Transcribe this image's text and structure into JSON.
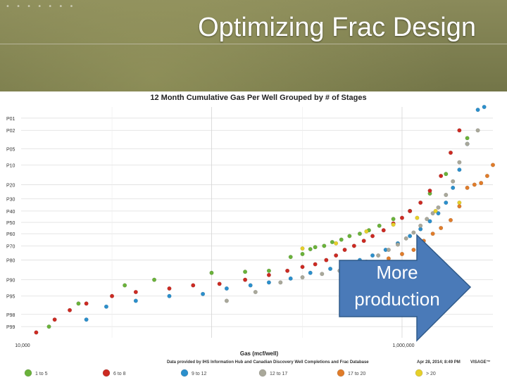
{
  "slide": {
    "title": "Optimizing Frac Design",
    "dots": "• • • • • • •"
  },
  "annotation": {
    "text_line1": "More",
    "text_line2": "production",
    "arrow_color": "#4a7ab8"
  },
  "chart_data": {
    "type": "scatter",
    "title": "12 Month Cumulative Gas Per Well Grouped by # of Stages",
    "subtitle": "",
    "xlabel": "Gas (mcf/well)",
    "ylabel": "",
    "x_scale": "log",
    "xlim": [
      10000,
      3000000
    ],
    "x_ticks": [
      {
        "value": 10000,
        "label": "10,000"
      },
      {
        "value": 1000000,
        "label": "1,000,000"
      }
    ],
    "y_scale": "percentile",
    "ylim": [
      99.5,
      0.5
    ],
    "y_ticks": [
      {
        "value": 1,
        "label": "P01"
      },
      {
        "value": 2,
        "label": "P02"
      },
      {
        "value": 5,
        "label": "P05"
      },
      {
        "value": 10,
        "label": "P10"
      },
      {
        "value": 20,
        "label": "P20"
      },
      {
        "value": 30,
        "label": "P30"
      },
      {
        "value": 40,
        "label": "P40"
      },
      {
        "value": 50,
        "label": "P50"
      },
      {
        "value": 60,
        "label": "P60"
      },
      {
        "value": 70,
        "label": "P70"
      },
      {
        "value": 80,
        "label": "P80"
      },
      {
        "value": 90,
        "label": "P90"
      },
      {
        "value": 95,
        "label": "P95"
      },
      {
        "value": 98,
        "label": "P98"
      },
      {
        "value": 99,
        "label": "P99"
      }
    ],
    "footer_source": "Data provided by IHS Information Hub and Canadian Discovery Well Completions and Frac Database",
    "footer_date": "Apr 28, 2014; 8:49 PM",
    "footer_brand": "VISAGE™",
    "legend_position": "bottom",
    "series": [
      {
        "name": "1 to 5",
        "color": "#6ab23a",
        "points": [
          [
            14000,
            99
          ],
          [
            20000,
            96.5
          ],
          [
            35000,
            92
          ],
          [
            50000,
            90
          ],
          [
            100000,
            87
          ],
          [
            150000,
            86.5
          ],
          [
            200000,
            86
          ],
          [
            260000,
            78
          ],
          [
            300000,
            76
          ],
          [
            330000,
            72.5
          ],
          [
            350000,
            71
          ],
          [
            390000,
            70
          ],
          [
            430000,
            67
          ],
          [
            480000,
            65
          ],
          [
            530000,
            62
          ],
          [
            600000,
            60
          ],
          [
            670000,
            57
          ],
          [
            760000,
            53
          ],
          [
            900000,
            47
          ],
          [
            1100000,
            40
          ],
          [
            1400000,
            26
          ],
          [
            1700000,
            14
          ],
          [
            2200000,
            3
          ]
        ]
      },
      {
        "name": "6 to 8",
        "color": "#cc2a22",
        "points": [
          [
            12000,
            99.3
          ],
          [
            15000,
            98.5
          ],
          [
            18000,
            97.5
          ],
          [
            22000,
            96.5
          ],
          [
            30000,
            95
          ],
          [
            40000,
            94
          ],
          [
            60000,
            93
          ],
          [
            80000,
            92
          ],
          [
            110000,
            91.5
          ],
          [
            150000,
            90
          ],
          [
            200000,
            88
          ],
          [
            250000,
            86
          ],
          [
            300000,
            84
          ],
          [
            350000,
            82.5
          ],
          [
            400000,
            80
          ],
          [
            450000,
            77
          ],
          [
            500000,
            73
          ],
          [
            560000,
            70
          ],
          [
            630000,
            66
          ],
          [
            700000,
            62
          ],
          [
            800000,
            57
          ],
          [
            900000,
            51
          ],
          [
            1000000,
            46
          ],
          [
            1100000,
            40
          ],
          [
            1250000,
            33
          ],
          [
            1400000,
            24
          ],
          [
            1600000,
            15
          ],
          [
            1800000,
            6
          ],
          [
            2000000,
            2
          ]
        ]
      },
      {
        "name": "9 to 12",
        "color": "#2b8fcc",
        "points": [
          [
            22000,
            98.5
          ],
          [
            28000,
            97
          ],
          [
            40000,
            96
          ],
          [
            60000,
            95
          ],
          [
            90000,
            94.5
          ],
          [
            120000,
            93
          ],
          [
            160000,
            92
          ],
          [
            200000,
            91
          ],
          [
            260000,
            89.5
          ],
          [
            330000,
            87
          ],
          [
            420000,
            85
          ],
          [
            500000,
            83
          ],
          [
            600000,
            80
          ],
          [
            700000,
            77
          ],
          [
            820000,
            73
          ],
          [
            950000,
            68
          ],
          [
            1100000,
            62
          ],
          [
            1250000,
            56
          ],
          [
            1400000,
            49
          ],
          [
            1550000,
            42
          ],
          [
            1700000,
            33
          ],
          [
            1850000,
            22
          ],
          [
            2000000,
            12
          ],
          [
            2200000,
            4
          ],
          [
            2500000,
            0.6
          ],
          [
            2700000,
            0.5
          ]
        ]
      },
      {
        "name": "12 to 17",
        "color": "#a9a89a",
        "points": [
          [
            120000,
            96
          ],
          [
            170000,
            94
          ],
          [
            230000,
            91
          ],
          [
            300000,
            89
          ],
          [
            380000,
            87.5
          ],
          [
            470000,
            86
          ],
          [
            560000,
            84
          ],
          [
            650000,
            81
          ],
          [
            750000,
            77
          ],
          [
            850000,
            73
          ],
          [
            950000,
            69
          ],
          [
            1050000,
            64
          ],
          [
            1150000,
            59
          ],
          [
            1250000,
            53
          ],
          [
            1350000,
            47
          ],
          [
            1450000,
            42
          ],
          [
            1550000,
            37
          ],
          [
            1700000,
            27
          ],
          [
            1850000,
            18
          ],
          [
            2000000,
            9
          ],
          [
            2200000,
            4
          ],
          [
            2500000,
            2
          ]
        ]
      },
      {
        "name": "17 to 20",
        "color": "#e07c2a",
        "points": [
          [
            750000,
            82
          ],
          [
            850000,
            79
          ],
          [
            1000000,
            76
          ],
          [
            1150000,
            73
          ],
          [
            1300000,
            66
          ],
          [
            1450000,
            60
          ],
          [
            1600000,
            55
          ],
          [
            1800000,
            48
          ],
          [
            2000000,
            36
          ],
          [
            2200000,
            22
          ],
          [
            2400000,
            20
          ],
          [
            2600000,
            19
          ],
          [
            2800000,
            15
          ],
          [
            3000000,
            10
          ]
        ]
      },
      {
        "name": "> 20",
        "color": "#e6d02a",
        "points": [
          [
            300000,
            72
          ],
          [
            450000,
            68
          ],
          [
            650000,
            58
          ],
          [
            900000,
            52
          ],
          [
            1200000,
            46
          ],
          [
            1500000,
            40
          ],
          [
            2000000,
            33
          ]
        ]
      }
    ]
  }
}
